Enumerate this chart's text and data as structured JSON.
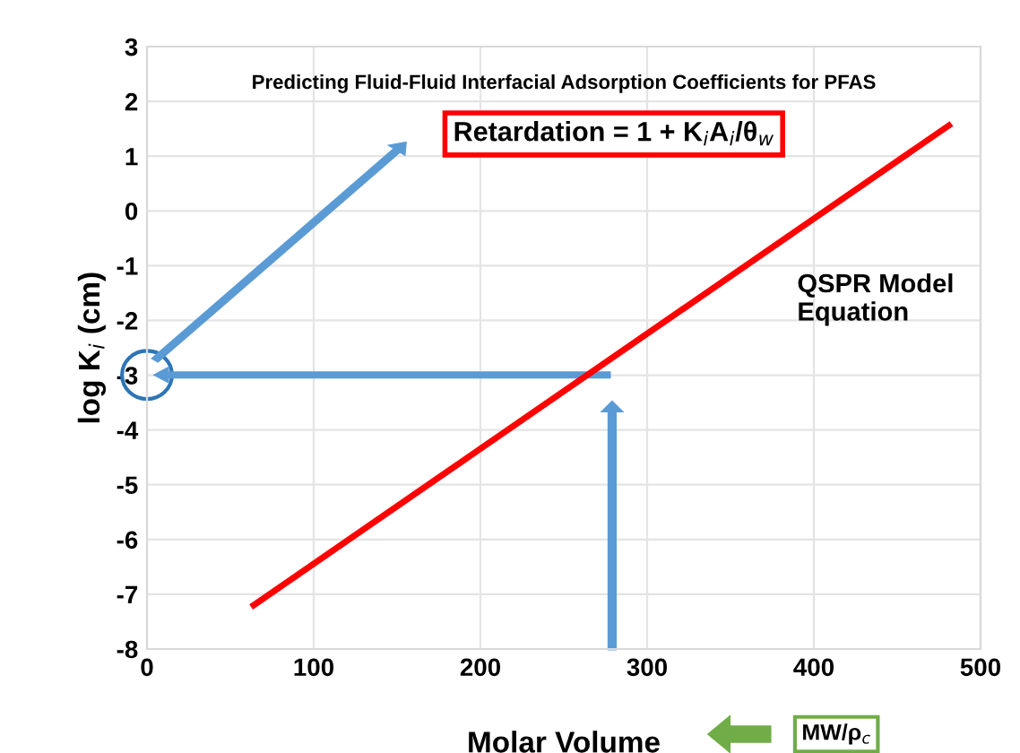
{
  "chart_data": {
    "type": "line",
    "title": "Predicting Fluid-Fluid Interfacial Adsorption Coefficients for PFAS",
    "xlabel": "Molar Volume",
    "ylabel": "log K$_{i}$ (cm)",
    "x": [
      64,
      481
    ],
    "series": [
      {
        "color": "#ff0000",
        "values": [
          -7.2,
          1.56
        ]
      }
    ],
    "xlim": [
      0,
      500
    ],
    "xticks": [
      0,
      100,
      200,
      300,
      400,
      500
    ],
    "ylim": [
      -8,
      3
    ],
    "yticks": [
      -8,
      -7,
      -6,
      -5,
      -4,
      -3,
      -2,
      -1,
      0,
      1,
      2,
      3
    ],
    "grid": true,
    "marker": "none",
    "line_style": "solid",
    "legend": false,
    "annotations": [
      "Retardation = 1 + K$_{i}$A$_{i}$/θ$_{w}$",
      "QSPR Model\nEquation",
      "MW/ρ$_{c}$"
    ]
  }
}
